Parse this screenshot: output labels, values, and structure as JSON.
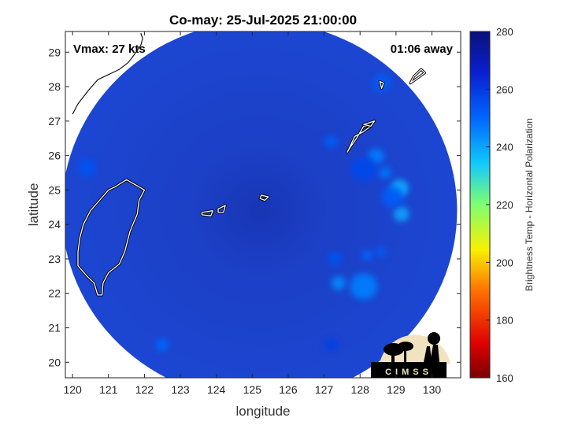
{
  "chart_data": {
    "type": "heatmap",
    "title": "Co-may: 25-Jul-2025 21:00:00",
    "xlabel": "longitude",
    "ylabel": "latitude",
    "xlim": [
      119.8,
      130.8
    ],
    "ylim": [
      19.55,
      29.6
    ],
    "xticks": [
      120,
      121,
      122,
      123,
      124,
      125,
      126,
      127,
      128,
      129,
      130
    ],
    "yticks": [
      20,
      21,
      22,
      23,
      24,
      25,
      26,
      27,
      28,
      29
    ],
    "annotations": {
      "vmax": "Vmax: 27 kts",
      "time_away": "01:06 away"
    },
    "colorbar": {
      "label": "Brightness Temp - Horizontal Polarization",
      "range": [
        160,
        280
      ],
      "ticks": [
        160,
        180,
        200,
        220,
        240,
        260,
        280
      ]
    },
    "swath": {
      "center": [
        125.2,
        24.4
      ],
      "radius_deg": 5.5
    },
    "features": [
      {
        "lon": 129.1,
        "lat": 25.05,
        "r": 0.25,
        "t": 238
      },
      {
        "lon": 129.15,
        "lat": 24.3,
        "r": 0.22,
        "t": 240
      },
      {
        "lon": 128.9,
        "lat": 24.8,
        "r": 0.3,
        "t": 252
      },
      {
        "lon": 128.45,
        "lat": 25.98,
        "r": 0.22,
        "t": 246
      },
      {
        "lon": 128.7,
        "lat": 25.5,
        "r": 0.18,
        "t": 248
      },
      {
        "lon": 128.1,
        "lat": 25.6,
        "r": 0.35,
        "t": 256
      },
      {
        "lon": 128.6,
        "lat": 28.1,
        "r": 0.25,
        "t": 252
      },
      {
        "lon": 127.2,
        "lat": 26.4,
        "r": 0.18,
        "t": 252
      },
      {
        "lon": 128.2,
        "lat": 23.1,
        "r": 0.15,
        "t": 250
      },
      {
        "lon": 128.6,
        "lat": 23.2,
        "r": 0.14,
        "t": 252
      },
      {
        "lon": 127.3,
        "lat": 23.0,
        "r": 0.2,
        "t": 254
      },
      {
        "lon": 128.1,
        "lat": 22.2,
        "r": 0.38,
        "t": 246
      },
      {
        "lon": 127.4,
        "lat": 22.3,
        "r": 0.2,
        "t": 244
      },
      {
        "lon": 127.2,
        "lat": 20.5,
        "r": 0.18,
        "t": 258
      },
      {
        "lon": 120.4,
        "lat": 25.65,
        "r": 0.25,
        "t": 254
      },
      {
        "lon": 122.5,
        "lat": 20.5,
        "r": 0.18,
        "t": 250
      }
    ],
    "taiwan_outline": [
      [
        121.5,
        25.3
      ],
      [
        121.75,
        25.15
      ],
      [
        122.0,
        25.0
      ],
      [
        121.85,
        24.7
      ],
      [
        121.8,
        24.3
      ],
      [
        121.6,
        23.8
      ],
      [
        121.45,
        23.2
      ],
      [
        121.3,
        22.85
      ],
      [
        121.0,
        22.6
      ],
      [
        120.85,
        22.3
      ],
      [
        120.82,
        21.95
      ],
      [
        120.7,
        21.95
      ],
      [
        120.6,
        22.3
      ],
      [
        120.4,
        22.5
      ],
      [
        120.15,
        22.8
      ],
      [
        120.15,
        23.2
      ],
      [
        120.2,
        23.6
      ],
      [
        120.3,
        24.0
      ],
      [
        120.5,
        24.4
      ],
      [
        120.75,
        24.7
      ],
      [
        121.0,
        25.0
      ],
      [
        121.2,
        25.1
      ],
      [
        121.5,
        25.3
      ]
    ],
    "islands": [
      [
        [
          123.6,
          24.35
        ],
        [
          123.9,
          24.4
        ],
        [
          123.85,
          24.25
        ],
        [
          123.6,
          24.28
        ],
        [
          123.6,
          24.35
        ]
      ],
      [
        [
          124.05,
          24.45
        ],
        [
          124.25,
          24.55
        ],
        [
          124.2,
          24.35
        ],
        [
          124.05,
          24.35
        ],
        [
          124.05,
          24.45
        ]
      ],
      [
        [
          125.25,
          24.85
        ],
        [
          125.45,
          24.8
        ],
        [
          125.35,
          24.7
        ],
        [
          125.22,
          24.75
        ],
        [
          125.25,
          24.85
        ]
      ],
      [
        [
          127.65,
          26.1
        ],
        [
          127.85,
          26.55
        ],
        [
          128.1,
          26.7
        ],
        [
          128.3,
          26.85
        ],
        [
          128.1,
          26.85
        ],
        [
          127.9,
          26.5
        ],
        [
          127.7,
          26.2
        ],
        [
          127.65,
          26.1
        ]
      ],
      [
        [
          128.1,
          26.9
        ],
        [
          128.4,
          27.0
        ],
        [
          128.3,
          26.85
        ],
        [
          128.1,
          26.9
        ]
      ],
      [
        [
          128.6,
          27.95
        ],
        [
          128.65,
          28.1
        ],
        [
          128.55,
          28.15
        ],
        [
          128.6,
          27.95
        ]
      ],
      [
        [
          129.4,
          28.1
        ],
        [
          129.8,
          28.4
        ],
        [
          129.7,
          28.5
        ],
        [
          129.5,
          28.3
        ],
        [
          129.4,
          28.1
        ]
      ]
    ],
    "china_coast": [
      [
        120.0,
        27.2
      ],
      [
        120.15,
        27.5
      ],
      [
        120.45,
        27.9
      ],
      [
        120.7,
        28.2
      ],
      [
        121.0,
        28.35
      ],
      [
        121.3,
        28.5
      ],
      [
        121.55,
        28.7
      ],
      [
        121.7,
        28.9
      ],
      [
        121.9,
        29.2
      ],
      [
        121.95,
        29.4
      ],
      [
        121.9,
        29.55
      ]
    ],
    "logo_text": "CIMSS"
  }
}
